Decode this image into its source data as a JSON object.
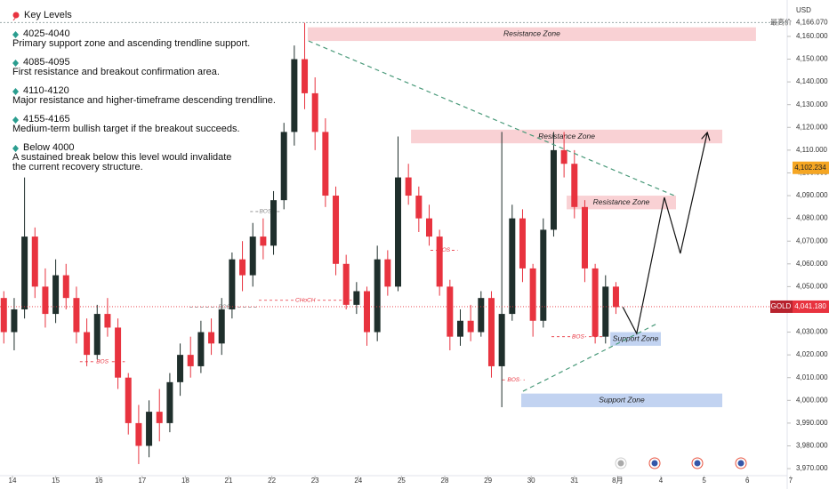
{
  "chart_data": {
    "type": "candlestick",
    "currency": "USD",
    "up_color": "#1f2f2c",
    "down_color": "#e8333f",
    "grid": false,
    "xlim": [
      -0.288,
      17.922
    ],
    "ylim": [
      3966.9,
      4176.0
    ],
    "xticks": [
      {
        "value": 0,
        "label": "14"
      },
      {
        "value": 1,
        "label": "15"
      },
      {
        "value": 2,
        "label": "16"
      },
      {
        "value": 3,
        "label": "17"
      },
      {
        "value": 4,
        "label": "18"
      },
      {
        "value": 5,
        "label": "21"
      },
      {
        "value": 6,
        "label": "22"
      },
      {
        "value": 7,
        "label": "23"
      },
      {
        "value": 8,
        "label": "24"
      },
      {
        "value": 9,
        "label": "25"
      },
      {
        "value": 10,
        "label": "28"
      },
      {
        "value": 11,
        "label": "29"
      },
      {
        "value": 12,
        "label": "30"
      },
      {
        "value": 13,
        "label": "31"
      },
      {
        "value": 14,
        "label": "8月"
      },
      {
        "value": 15,
        "label": "4"
      },
      {
        "value": 16,
        "label": "5"
      },
      {
        "value": 17,
        "label": "6"
      },
      {
        "value": 18,
        "label": "7"
      }
    ],
    "yticks": [
      {
        "value": 3970,
        "label": "3,970.000"
      },
      {
        "value": 3980,
        "label": "3,980.000"
      },
      {
        "value": 3990,
        "label": "3,990.000"
      },
      {
        "value": 4000,
        "label": "4,000.000"
      },
      {
        "value": 4010,
        "label": "4,010.000"
      },
      {
        "value": 4020,
        "label": "4,020.000"
      },
      {
        "value": 4030,
        "label": "4,030.000"
      },
      {
        "value": 4040,
        "label": "4,040.000"
      },
      {
        "value": 4050,
        "label": "4,050.000"
      },
      {
        "value": 4060,
        "label": "4,060.000"
      },
      {
        "value": 4070,
        "label": "4,070.000"
      },
      {
        "value": 4080,
        "label": "4,080.000"
      },
      {
        "value": 4090,
        "label": "4,090.000"
      },
      {
        "value": 4100,
        "label": "4,100.000"
      },
      {
        "value": 4110,
        "label": "4,110.000"
      },
      {
        "value": 4120,
        "label": "4,120.000"
      },
      {
        "value": 4130,
        "label": "4,130.000"
      },
      {
        "value": 4140,
        "label": "4,140.000"
      },
      {
        "value": 4150,
        "label": "4,150.000"
      },
      {
        "value": 4160,
        "label": "4,160.000"
      }
    ],
    "x": [
      -0.2,
      0.04,
      0.28,
      0.52,
      0.76,
      1.0,
      1.24,
      1.48,
      1.72,
      1.96,
      2.2,
      2.44,
      2.68,
      2.92,
      3.16,
      3.4,
      3.64,
      3.88,
      4.12,
      4.36,
      4.6,
      4.84,
      5.08,
      5.32,
      5.56,
      5.8,
      6.04,
      6.28,
      6.52,
      6.76,
      7.0,
      7.24,
      7.48,
      7.72,
      7.96,
      8.2,
      8.44,
      8.68,
      8.92,
      9.16,
      9.4,
      9.64,
      9.88,
      10.12,
      10.36,
      10.6,
      10.84,
      11.08,
      11.32,
      11.56,
      11.8,
      12.04,
      12.28,
      12.52,
      12.76,
      13.0,
      13.24,
      13.48,
      13.72,
      13.96
    ],
    "open": [
      4045,
      4030,
      4040,
      4072,
      4050,
      4038,
      4055,
      4045,
      4030,
      4020,
      4038,
      4032,
      4010,
      3990,
      3980,
      3995,
      3990,
      4008,
      4020,
      4015,
      4030,
      4025,
      4040,
      4062,
      4055,
      4072,
      4068,
      4088,
      4118,
      4150,
      4135,
      4118,
      4090,
      4060,
      4042,
      4048,
      4030,
      4062,
      4050,
      4098,
      4090,
      4080,
      4072,
      4050,
      4028,
      4035,
      4030,
      4045,
      4015,
      4038,
      4080,
      4058,
      4035,
      4075,
      4110,
      4104,
      4085,
      4058,
      4028,
      4050
    ],
    "high": [
      4048,
      4045,
      4098,
      4076,
      4058,
      4062,
      4060,
      4050,
      4036,
      4042,
      4045,
      4036,
      4012,
      3998,
      4000,
      4005,
      4012,
      4025,
      4028,
      4035,
      4036,
      4045,
      4065,
      4070,
      4078,
      4080,
      4092,
      4122,
      4156,
      4166,
      4142,
      4124,
      4094,
      4064,
      4052,
      4050,
      4068,
      4066,
      4116,
      4104,
      4094,
      4086,
      4075,
      4053,
      4040,
      4042,
      4048,
      4048,
      4118,
      4086,
      4084,
      4060,
      4080,
      4118,
      4118,
      4110,
      4088,
      4060,
      4055,
      4052
    ],
    "low": [
      4025,
      4022,
      4036,
      4045,
      4032,
      4034,
      4040,
      4025,
      4015,
      4018,
      4028,
      4005,
      3985,
      3972,
      3975,
      3982,
      3986,
      4002,
      4010,
      4012,
      4020,
      4020,
      4036,
      4048,
      4050,
      4062,
      4064,
      4084,
      4112,
      4128,
      4110,
      4085,
      4055,
      4040,
      4038,
      4024,
      4026,
      4046,
      4048,
      4086,
      4074,
      4068,
      4046,
      4022,
      4024,
      4026,
      4028,
      4010,
      3997,
      4035,
      4052,
      4028,
      4032,
      4072,
      4098,
      4080,
      4052,
      4025,
      4025,
      4038
    ],
    "close": [
      4030,
      4040,
      4072,
      4050,
      4038,
      4055,
      4045,
      4030,
      4020,
      4038,
      4032,
      4010,
      3990,
      3980,
      3995,
      3990,
      4008,
      4020,
      4015,
      4030,
      4025,
      4040,
      4062,
      4055,
      4072,
      4068,
      4088,
      4118,
      4150,
      4135,
      4118,
      4090,
      4060,
      4042,
      4048,
      4030,
      4062,
      4050,
      4098,
      4090,
      4080,
      4072,
      4050,
      4028,
      4035,
      4030,
      4045,
      4015,
      4038,
      4080,
      4058,
      4035,
      4075,
      4110,
      4104,
      4085,
      4058,
      4028,
      4050,
      4041
    ],
    "zones": [
      {
        "label": "Resistance Zone",
        "kind": "resistance",
        "x1": 6.83,
        "x2": 17.2,
        "y1": 4158,
        "y2": 4164
      },
      {
        "label": "Resistance Zone",
        "kind": "resistance",
        "x1": 9.22,
        "x2": 16.42,
        "y1": 4113,
        "y2": 4119
      },
      {
        "label": "Resistance Zone",
        "kind": "resistance",
        "x1": 12.82,
        "x2": 15.35,
        "y1": 4084,
        "y2": 4090
      },
      {
        "label": "Support Zone",
        "kind": "support",
        "x1": 13.83,
        "x2": 15.0,
        "y1": 4024,
        "y2": 4030
      },
      {
        "label": "Support Zone",
        "kind": "support",
        "x1": 11.77,
        "x2": 16.42,
        "y1": 3997,
        "y2": 4003
      }
    ],
    "levels": [
      {
        "label": "BOS",
        "value": 4017,
        "x1": 1.56,
        "x2": 2.6,
        "color": "#e8333f"
      },
      {
        "label": "BOS",
        "value": 4041,
        "x1": 4.1,
        "x2": 5.7,
        "color": "#888888"
      },
      {
        "label": "BOS",
        "value": 4083,
        "x1": 5.5,
        "x2": 6.2,
        "color": "#888888"
      },
      {
        "label": "CHoCH",
        "value": 4044,
        "x1": 5.7,
        "x2": 7.85,
        "color": "#e8333f"
      },
      {
        "label": "BOS",
        "value": 4066,
        "x1": 9.67,
        "x2": 10.3,
        "color": "#e8333f"
      },
      {
        "label": "BOS",
        "value": 4009,
        "x1": 11.33,
        "x2": 11.85,
        "color": "#e8333f"
      },
      {
        "label": "BOS",
        "value": 4028,
        "x1": 12.47,
        "x2": 13.7,
        "color": "#e8333f"
      }
    ],
    "trendlines": [
      {
        "x": [
          6.85,
          15.31
        ],
        "y": [
          4158,
          4090
        ],
        "color": "#4a9a7a",
        "dashed": true,
        "arrow": false
      },
      {
        "x": [
          11.81,
          14.94
        ],
        "y": [
          4004,
          4034
        ],
        "color": "#4a9a7a",
        "dashed": true,
        "arrow": false
      },
      {
        "x": [
          14.12,
          14.44,
          15.08,
          15.45,
          16.07
        ],
        "y": [
          4041,
          4029.4,
          4089.2,
          4064.6,
          4117.4
        ],
        "color": "#111111",
        "dashed": false,
        "arrow": true
      }
    ],
    "last_price": {
      "symbol": "GOLD",
      "value": 4041.18,
      "label": "4,041.180",
      "color": "#e8333f"
    },
    "high_price": {
      "title": "最高价",
      "value": 4166.07,
      "label": "4,166.070"
    },
    "marker_price": {
      "value": 4102.234,
      "label": "4,102.234",
      "color": "#f5a623"
    },
    "key_levels": {
      "title": "Key Levels",
      "items": [
        {
          "range": "4025-4040",
          "text": [
            "Primary support zone and ascending trendline support."
          ]
        },
        {
          "range": "4085-4095",
          "text": [
            "First resistance and breakout confirmation area."
          ]
        },
        {
          "range": "4110-4120",
          "text": [
            "Major resistance and higher-timeframe descending trendline."
          ]
        },
        {
          "range": "4155-4165",
          "text": [
            "Medium-term bullish target if the breakout succeeds."
          ]
        },
        {
          "range": "Below 4000",
          "text": [
            "A sustained break below this level would invalidate",
            "the current recovery structure."
          ]
        }
      ]
    }
  }
}
